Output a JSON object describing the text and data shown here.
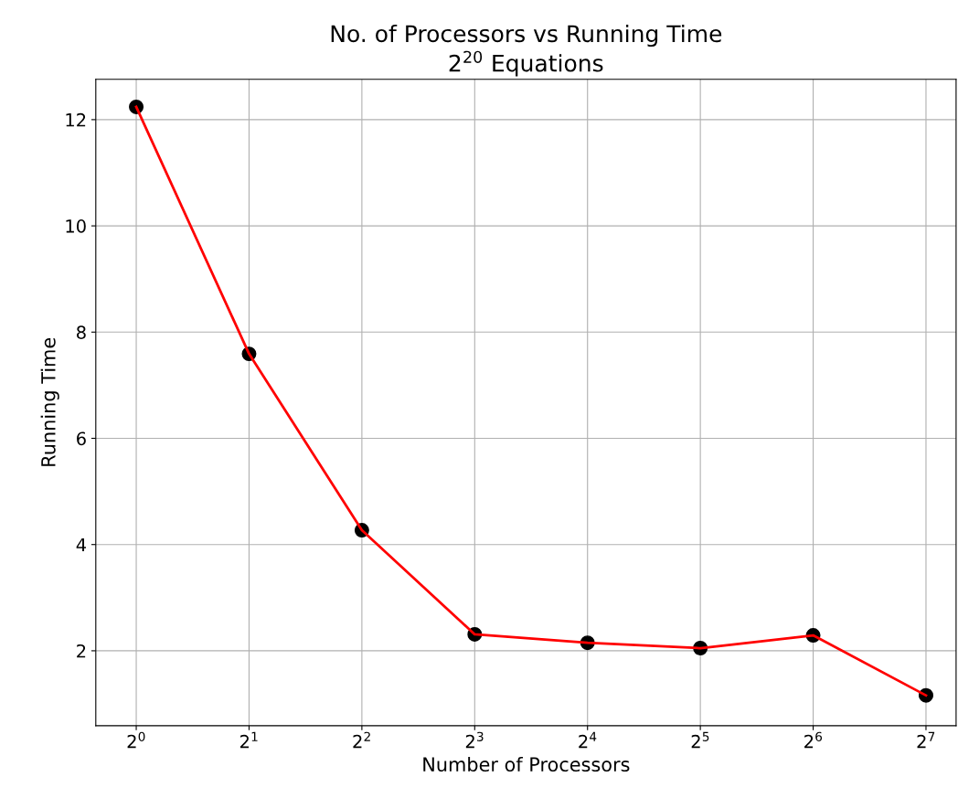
{
  "chart_data": {
    "type": "line",
    "title": "No. of Processors vs Running Time\n2$^{20}$ Equations",
    "xlabel": "Number of Processors",
    "ylabel": "Running Time",
    "x": [
      1,
      2,
      4,
      8,
      16,
      32,
      64,
      128
    ],
    "series": [
      {
        "type": "scatter",
        "color": "#000000",
        "marker": "circle",
        "values": [
          12.24,
          7.59,
          4.27,
          2.31,
          2.15,
          2.05,
          2.29,
          1.16
        ]
      },
      {
        "color": "#ff0000",
        "line_style": "solid",
        "values": [
          12.24,
          7.59,
          4.27,
          2.31,
          2.15,
          2.05,
          2.29,
          1.16
        ]
      }
    ],
    "log": "x",
    "xlim": [
      0.78,
      154
    ],
    "ylim": [
      0.59,
      12.76
    ],
    "xticks": [
      {
        "value": 1,
        "label": "2$^{0}$"
      },
      {
        "value": 2,
        "label": "2$^{1}$"
      },
      {
        "value": 4,
        "label": "2$^{2}$"
      },
      {
        "value": 8,
        "label": "2$^{3}$"
      },
      {
        "value": 16,
        "label": "2$^{4}$"
      },
      {
        "value": 32,
        "label": "2$^{5}$"
      },
      {
        "value": 64,
        "label": "2$^{6}$"
      },
      {
        "value": 128,
        "label": "2$^{7}$"
      }
    ],
    "yticks": [
      2,
      4,
      6,
      8,
      10,
      12
    ],
    "grid": true
  }
}
